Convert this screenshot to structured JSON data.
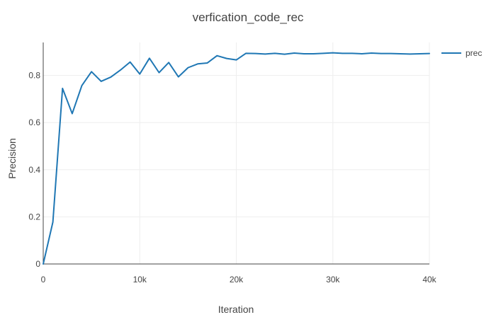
{
  "chart_data": {
    "type": "line",
    "title": "verfication_code_rec",
    "xlabel": "Iteration",
    "ylabel": "Precision",
    "xlim": [
      0,
      40000
    ],
    "ylim": [
      0,
      0.94
    ],
    "x_ticks": [
      0,
      10000,
      20000,
      30000,
      40000
    ],
    "x_tick_labels": [
      "0",
      "10k",
      "20k",
      "30k",
      "40k"
    ],
    "y_ticks": [
      0,
      0.2,
      0.4,
      0.6,
      0.8
    ],
    "y_tick_labels": [
      "0",
      "0.2",
      "0.4",
      "0.6",
      "0.8"
    ],
    "grid": true,
    "legend_position": "top-right",
    "series": [
      {
        "name": "prec",
        "color": "#1f77b4",
        "x": [
          0,
          1000,
          2000,
          3000,
          4000,
          5000,
          6000,
          7000,
          8000,
          9000,
          10000,
          11000,
          12000,
          13000,
          14000,
          15000,
          16000,
          17000,
          18000,
          19000,
          20000,
          21000,
          22000,
          23000,
          24000,
          25000,
          26000,
          27000,
          28000,
          29000,
          30000,
          31000,
          32000,
          33000,
          34000,
          35000,
          36000,
          37000,
          38000,
          39000,
          40000
        ],
        "y": [
          0.0,
          0.178,
          0.745,
          0.638,
          0.757,
          0.816,
          0.775,
          0.793,
          0.823,
          0.857,
          0.806,
          0.873,
          0.812,
          0.855,
          0.794,
          0.833,
          0.849,
          0.853,
          0.884,
          0.872,
          0.866,
          0.894,
          0.893,
          0.891,
          0.894,
          0.89,
          0.895,
          0.892,
          0.892,
          0.894,
          0.896,
          0.894,
          0.894,
          0.892,
          0.895,
          0.893,
          0.893,
          0.892,
          0.891,
          0.892,
          0.893
        ]
      }
    ]
  }
}
